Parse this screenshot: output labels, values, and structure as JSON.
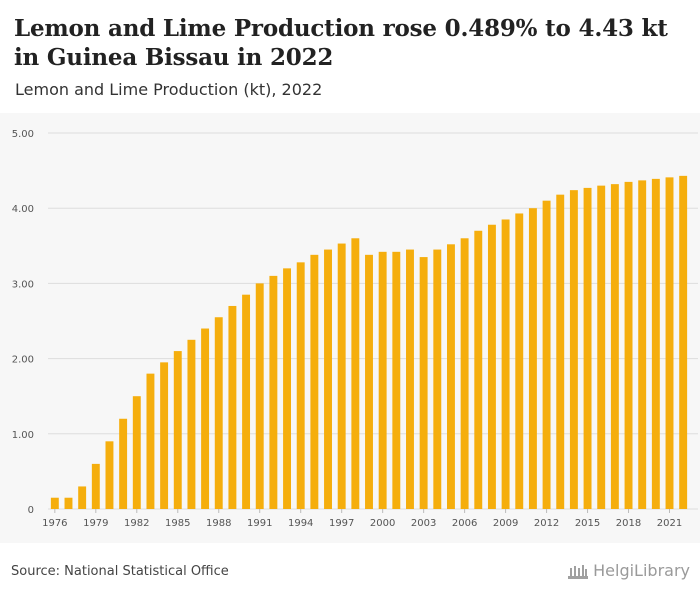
{
  "header": {
    "title": "Lemon and Lime Production rose 0.489% to 4.43 kt in Guinea Bissau in 2022",
    "subtitle": "Lemon and Lime Production (kt), 2022"
  },
  "footer": {
    "source": "Source: National Statistical Office",
    "brand": "HelgiLibrary"
  },
  "colors": {
    "bar": "#f5ae0d",
    "grid": "#dddddd",
    "background": "#f7f7f7",
    "tick_text": "#555555"
  },
  "chart_data": {
    "type": "bar",
    "categories": [
      "1976",
      "1977",
      "1978",
      "1979",
      "1980",
      "1981",
      "1982",
      "1983",
      "1984",
      "1985",
      "1986",
      "1987",
      "1988",
      "1989",
      "1990",
      "1991",
      "1992",
      "1993",
      "1994",
      "1995",
      "1996",
      "1997",
      "1998",
      "1999",
      "2000",
      "2001",
      "2002",
      "2003",
      "2004",
      "2005",
      "2006",
      "2007",
      "2008",
      "2009",
      "2010",
      "2011",
      "2012",
      "2013",
      "2014",
      "2015",
      "2016",
      "2017",
      "2018",
      "2019",
      "2020",
      "2021",
      "2022"
    ],
    "values": [
      0.15,
      0.15,
      0.3,
      0.6,
      0.9,
      1.2,
      1.5,
      1.8,
      1.95,
      2.1,
      2.25,
      2.4,
      2.55,
      2.7,
      2.85,
      3.0,
      3.1,
      3.2,
      3.28,
      3.38,
      3.45,
      3.53,
      3.6,
      3.38,
      3.42,
      3.42,
      3.45,
      3.35,
      3.45,
      3.52,
      3.6,
      3.7,
      3.78,
      3.85,
      3.93,
      4.0,
      4.1,
      4.18,
      4.24,
      4.27,
      4.3,
      4.32,
      4.35,
      4.37,
      4.39,
      4.41,
      4.43
    ],
    "x_tick_labels": [
      "1976",
      "1979",
      "1982",
      "1985",
      "1988",
      "1991",
      "1994",
      "1997",
      "2000",
      "2003",
      "2006",
      "2009",
      "2012",
      "2015",
      "2018",
      "2021"
    ],
    "y_tick_labels": [
      "0",
      "1.00",
      "2.00",
      "3.00",
      "4.00",
      "5.00"
    ],
    "y_ticks": [
      0,
      1,
      2,
      3,
      4,
      5
    ],
    "ylim": [
      0,
      5
    ],
    "grid": true,
    "legend": "none"
  }
}
